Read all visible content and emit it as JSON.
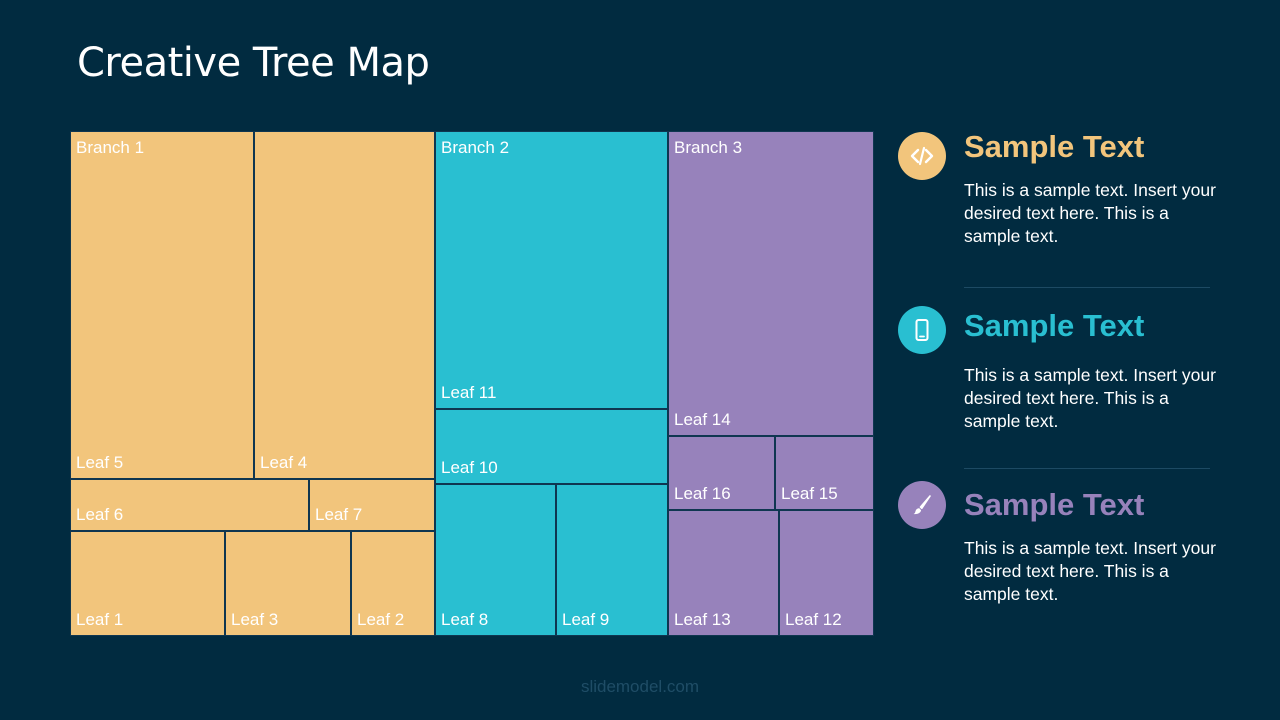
{
  "slide": {
    "title": "Creative Tree Map",
    "footer": "slidemodel.com"
  },
  "colors": {
    "branch1": "#F2C57C",
    "branch2": "#29BFD1",
    "branch3": "#9782BB",
    "background": "#012B40"
  },
  "treemap": {
    "branches": [
      "Branch 1",
      "Branch 2",
      "Branch 3"
    ],
    "leaves": {
      "leaf1": "Leaf 1",
      "leaf2": "Leaf 2",
      "leaf3": "Leaf 3",
      "leaf4": "Leaf 4",
      "leaf5": "Leaf 5",
      "leaf6": "Leaf 6",
      "leaf7": "Leaf 7",
      "leaf8": "Leaf 8",
      "leaf9": "Leaf 9",
      "leaf10": "Leaf 10",
      "leaf11": "Leaf 11",
      "leaf12": "Leaf 12",
      "leaf13": "Leaf 13",
      "leaf14": "Leaf 14",
      "leaf15": "Leaf 15",
      "leaf16": "Leaf 16"
    }
  },
  "sidebar": [
    {
      "icon": "code-icon",
      "heading": "Sample Text",
      "color": "#F2C57C",
      "body": "This is a sample text. Insert your desired text here. This is a sample text."
    },
    {
      "icon": "mobile-phone-icon",
      "heading": "Sample Text",
      "color": "#29BFD1",
      "body": "This is a sample text. Insert your desired text here. This is a sample text."
    },
    {
      "icon": "paintbrush-icon",
      "heading": "Sample Text",
      "color": "#9782BB",
      "body": "This is a sample text. Insert your desired text here. This is a sample text."
    }
  ]
}
